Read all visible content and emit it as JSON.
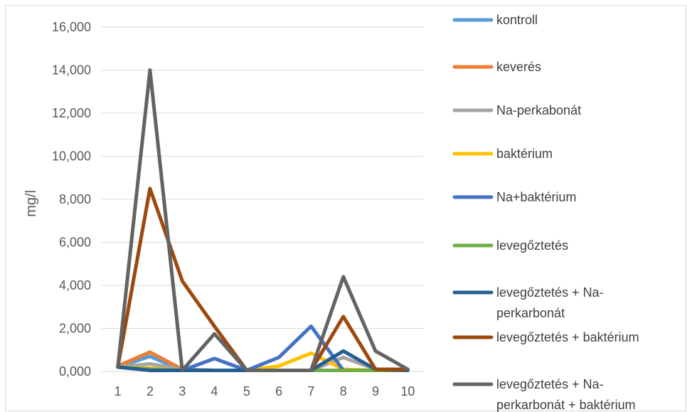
{
  "chart_data": {
    "type": "line",
    "ylabel": "mg/l",
    "ylim": [
      0,
      16
    ],
    "y_ticks": [
      0,
      2,
      4,
      6,
      8,
      10,
      12,
      14,
      16
    ],
    "y_tick_labels": [
      "0,000",
      "2,000",
      "4,000",
      "6,000",
      "8,000",
      "10,000",
      "12,000",
      "14,000",
      "16,000"
    ],
    "categories": [
      "1",
      "2",
      "3",
      "4",
      "5",
      "6",
      "7",
      "8",
      "9",
      "10"
    ],
    "grid": "horizontal",
    "legend_position": "right",
    "series": [
      {
        "name": "kontroll",
        "color": "#5B9BD5",
        "values": [
          0.2,
          0.7,
          0.05,
          0.05,
          0.05,
          0.05,
          0.05,
          0.05,
          0.05,
          0.05
        ]
      },
      {
        "name": "keverés",
        "color": "#ED7D31",
        "values": [
          0.25,
          0.9,
          0.1,
          0.05,
          0.05,
          0.05,
          0.05,
          0.05,
          0.05,
          0.05
        ]
      },
      {
        "name": "Na-perkabonát",
        "color": "#A5A5A5",
        "values": [
          0.2,
          0.35,
          0.1,
          0.05,
          0.05,
          0.05,
          0.05,
          0.65,
          0.1,
          0.05
        ]
      },
      {
        "name": "baktérium",
        "color": "#FFC000",
        "values": [
          0.2,
          0.15,
          0.05,
          0.05,
          0.05,
          0.25,
          0.85,
          0.1,
          0.05,
          0.05
        ]
      },
      {
        "name": "Na+baktérium",
        "color": "#4472C4",
        "values": [
          0.2,
          0.1,
          0.05,
          0.6,
          0.05,
          0.65,
          2.1,
          0.05,
          0.05,
          0.05
        ]
      },
      {
        "name": "levegőztetés",
        "color": "#70AD47",
        "values": [
          0.2,
          0.1,
          0.05,
          0.05,
          0.05,
          0.05,
          0.05,
          0.05,
          0.05,
          0.05
        ]
      },
      {
        "name": "levegőztetés + Na-perkarbonát",
        "color": "#255E91",
        "values": [
          0.2,
          0.05,
          0.05,
          0.05,
          0.05,
          0.05,
          0.05,
          0.95,
          0.1,
          0.05
        ]
      },
      {
        "name": "levegőztetés + baktérium",
        "color": "#9E480E",
        "values": [
          0.2,
          8.5,
          4.2,
          2.1,
          0.05,
          0.05,
          0.05,
          2.55,
          0.1,
          0.1
        ]
      },
      {
        "name": "levegőztetés + Na-perkarbonát + baktérium",
        "color": "#636363",
        "values": [
          0.2,
          14.0,
          0.05,
          1.75,
          0.05,
          0.05,
          0.05,
          4.4,
          0.95,
          0.1
        ]
      }
    ]
  },
  "legend": {
    "entries": [
      {
        "lines": [
          "kontroll"
        ]
      },
      {
        "lines": [
          "keverés"
        ]
      },
      {
        "lines": [
          "Na-perkabonát"
        ]
      },
      {
        "lines": [
          "baktérium"
        ]
      },
      {
        "lines": [
          "Na+baktérium"
        ]
      },
      {
        "lines": [
          "levegőztetés"
        ]
      },
      {
        "lines": [
          "levegőztetés + Na-",
          "perkarbonát"
        ]
      },
      {
        "lines": [
          "levegőztetés + baktérium"
        ]
      },
      {
        "lines": [
          "levegőztetés + Na-",
          "perkarbonát + baktérium"
        ]
      }
    ]
  }
}
